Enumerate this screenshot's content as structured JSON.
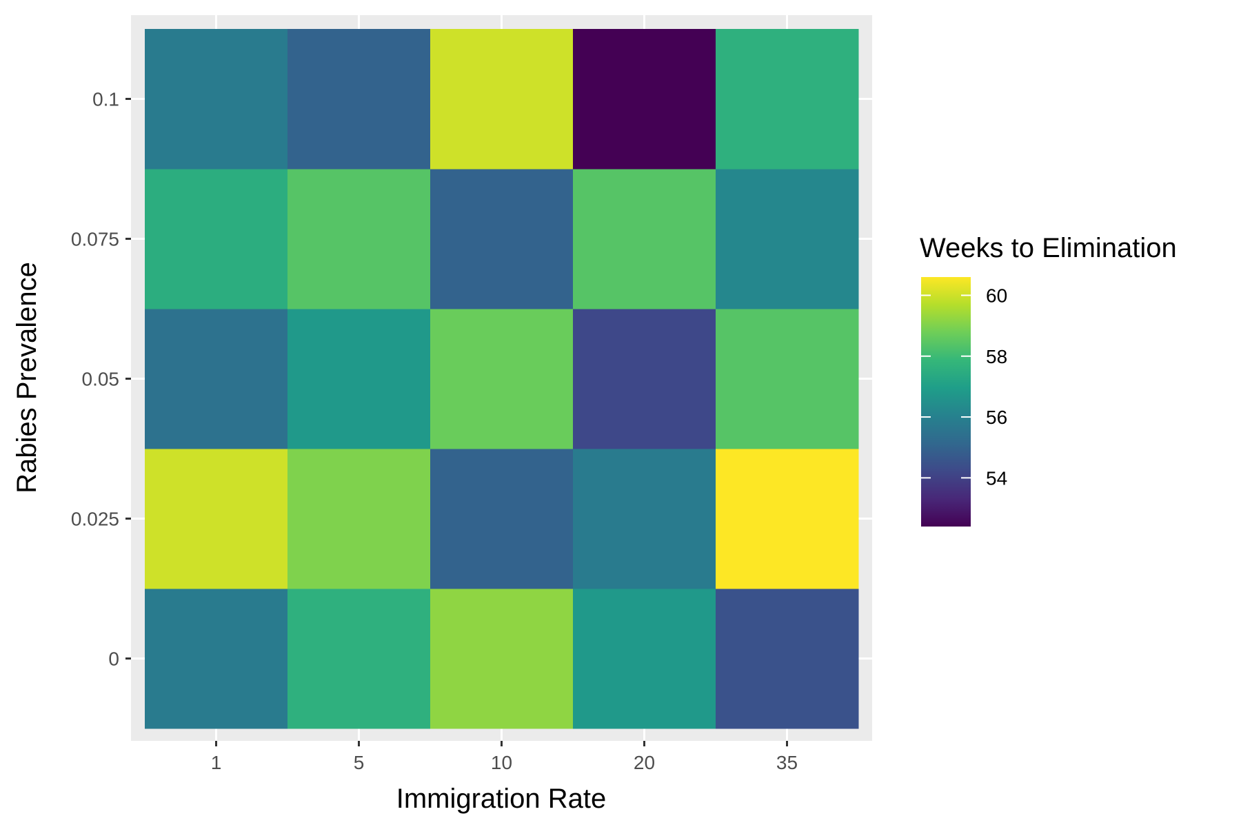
{
  "chart_data": {
    "type": "heatmap",
    "title": "",
    "xlabel": "Immigration Rate",
    "ylabel": "Rabies Prevalence",
    "x_categories": [
      "1",
      "5",
      "10",
      "20",
      "35"
    ],
    "y_categories": [
      "0",
      "0.025",
      "0.05",
      "0.075",
      "0.1"
    ],
    "grid": true,
    "legend": {
      "title": "Weeks to Elimination",
      "placement": "right",
      "ticks": [
        54,
        56,
        58,
        60
      ],
      "range": [
        52.4,
        60.6
      ],
      "colormap": "viridis"
    },
    "values": [
      [
        55.8,
        57.6,
        59.2,
        56.8,
        54.5
      ],
      [
        60.0,
        59.0,
        55.0,
        55.8,
        60.6
      ],
      [
        55.5,
        56.8,
        58.7,
        54.2,
        58.4
      ],
      [
        57.5,
        58.4,
        55.0,
        58.4,
        56.2
      ],
      [
        55.8,
        55.0,
        60.0,
        52.4,
        57.6
      ]
    ]
  },
  "colors": {
    "panel_background": "#ebebeb",
    "grid_line": "#ffffff",
    "tick_label": "#4d4d4d",
    "tick_mark": "#333333",
    "viridis_stops": [
      "#440154",
      "#482878",
      "#3e4989",
      "#31688e",
      "#26828e",
      "#1f9e89",
      "#35b779",
      "#6ece58",
      "#b5de2b",
      "#fde725"
    ]
  }
}
